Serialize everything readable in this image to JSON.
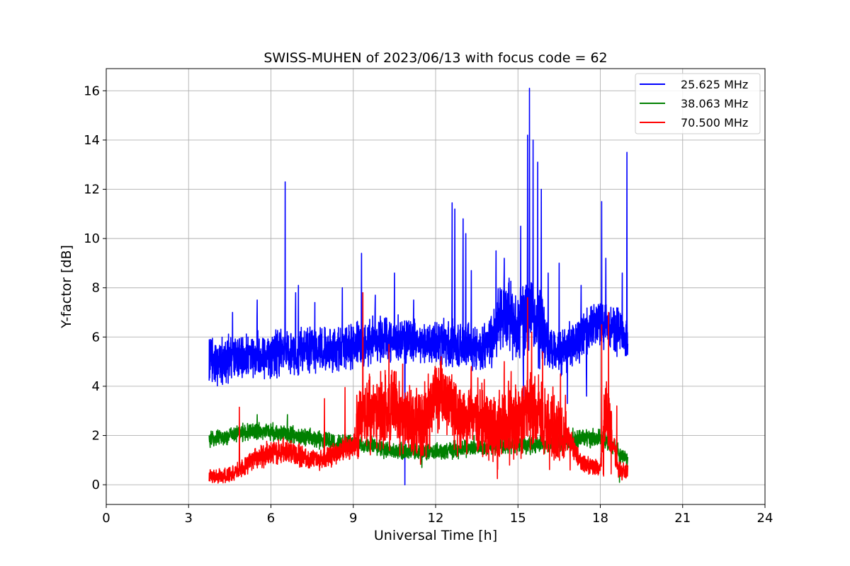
{
  "chart_data": {
    "type": "line",
    "title": "SWISS-MUHEN of 2023/06/13 with focus code = 62",
    "xlabel": "Universal Time [h]",
    "ylabel": "Y-factor [dB]",
    "xlim": [
      0,
      24
    ],
    "ylim": [
      -0.8,
      16.9
    ],
    "xticks": [
      0,
      3,
      6,
      9,
      12,
      15,
      18,
      21,
      24
    ],
    "yticks": [
      0,
      2,
      4,
      6,
      8,
      10,
      12,
      14,
      16
    ],
    "xtick_labels": [
      "0",
      "3",
      "6",
      "9",
      "12",
      "15",
      "18",
      "21",
      "24"
    ],
    "ytick_labels": [
      "0",
      "2",
      "4",
      "6",
      "8",
      "10",
      "12",
      "14",
      "16"
    ],
    "grid": true,
    "legend_position": "top-right",
    "series": [
      {
        "name": "25.625 MHz",
        "color": "#0000ff",
        "baseline": {
          "x": [
            3.75,
            4.5,
            5.5,
            6.5,
            7.5,
            8.5,
            9.25,
            10.0,
            11.0,
            12.0,
            13.0,
            13.8,
            14.5,
            15.0,
            15.5,
            16.0,
            16.5,
            17.0,
            17.5,
            18.0,
            18.5,
            19.0
          ],
          "y": [
            5.0,
            5.1,
            5.3,
            5.4,
            5.4,
            5.5,
            5.7,
            5.9,
            5.8,
            5.8,
            5.6,
            5.6,
            7.0,
            6.5,
            7.0,
            5.8,
            5.3,
            5.7,
            6.2,
            6.5,
            6.3,
            6.0
          ]
        },
        "spikes": [
          [
            3.8,
            5.9
          ],
          [
            4.6,
            7.0
          ],
          [
            5.5,
            7.5
          ],
          [
            6.52,
            12.3
          ],
          [
            6.9,
            7.8
          ],
          [
            7.0,
            8.1
          ],
          [
            7.6,
            7.4
          ],
          [
            8.6,
            8.0
          ],
          [
            9.3,
            9.4
          ],
          [
            9.8,
            7.7
          ],
          [
            10.5,
            8.6
          ],
          [
            11.2,
            7.5
          ],
          [
            12.6,
            11.45
          ],
          [
            12.7,
            11.2
          ],
          [
            13.0,
            10.8
          ],
          [
            13.1,
            10.2
          ],
          [
            13.3,
            8.7
          ],
          [
            14.2,
            9.5
          ],
          [
            14.5,
            9.2
          ],
          [
            15.1,
            10.5
          ],
          [
            15.35,
            14.2
          ],
          [
            15.42,
            16.1
          ],
          [
            15.55,
            14.0
          ],
          [
            15.72,
            13.1
          ],
          [
            15.85,
            12.0
          ],
          [
            16.1,
            8.6
          ],
          [
            16.5,
            9.0
          ],
          [
            17.3,
            8.1
          ],
          [
            18.05,
            11.5
          ],
          [
            18.2,
            9.2
          ],
          [
            18.8,
            8.6
          ],
          [
            18.97,
            13.5
          ]
        ],
        "dips": [
          [
            10.88,
            0.0
          ],
          [
            17.5,
            3.6
          ],
          [
            15.2,
            3.5
          ],
          [
            16.8,
            3.3
          ]
        ]
      },
      {
        "name": "38.063 MHz",
        "color": "#008000",
        "baseline": {
          "x": [
            3.75,
            4.5,
            5.5,
            6.5,
            7.5,
            8.5,
            9.5,
            10.5,
            11.5,
            12.5,
            13.5,
            14.5,
            15.5,
            16.5,
            17.0,
            17.5,
            18.0,
            18.5,
            19.0
          ],
          "y": [
            1.8,
            2.0,
            2.2,
            2.1,
            1.9,
            1.7,
            1.6,
            1.4,
            1.3,
            1.4,
            1.5,
            1.6,
            1.6,
            1.7,
            1.8,
            1.9,
            1.9,
            1.5,
            1.0
          ]
        },
        "spikes": [
          [
            5.5,
            2.85
          ],
          [
            6.6,
            2.85
          ],
          [
            9.2,
            2.7
          ],
          [
            13.4,
            2.0
          ],
          [
            17.0,
            2.3
          ]
        ],
        "dips": [
          [
            11.5,
            0.7
          ],
          [
            18.7,
            0.1
          ]
        ]
      },
      {
        "name": "70.500 MHz",
        "color": "#ff0000",
        "baseline": {
          "x": [
            3.75,
            4.5,
            5.0,
            5.5,
            6.0,
            6.5,
            7.0,
            7.5,
            8.0,
            8.5,
            9.0,
            9.15,
            9.3,
            10.0,
            10.5,
            11.0,
            11.5,
            12.0,
            12.5,
            13.0,
            13.5,
            14.0,
            14.5,
            15.0,
            15.5,
            16.0,
            16.5,
            17.0,
            17.3,
            17.5,
            18.0,
            18.2,
            18.5,
            18.65,
            19.0
          ],
          "y": [
            0.3,
            0.4,
            0.7,
            1.1,
            1.3,
            1.4,
            1.2,
            1.0,
            1.1,
            1.3,
            1.6,
            2.0,
            3.0,
            2.9,
            3.2,
            2.6,
            2.4,
            3.6,
            3.3,
            2.8,
            2.9,
            2.5,
            2.4,
            2.6,
            3.2,
            2.5,
            2.3,
            1.5,
            0.9,
            0.8,
            0.7,
            3.0,
            1.5,
            0.6,
            0.5
          ]
        },
        "spikes": [
          [
            4.85,
            3.15
          ],
          [
            7.95,
            3.5
          ],
          [
            8.7,
            3.95
          ],
          [
            9.35,
            7.8
          ],
          [
            10.3,
            5.7
          ],
          [
            10.8,
            4.9
          ],
          [
            12.2,
            5.2
          ],
          [
            13.3,
            4.8
          ],
          [
            14.5,
            5.0
          ],
          [
            14.75,
            4.6
          ],
          [
            15.35,
            7.6
          ],
          [
            15.5,
            6.2
          ],
          [
            15.9,
            5.4
          ],
          [
            16.55,
            4.5
          ],
          [
            18.05,
            6.5
          ],
          [
            18.3,
            7.0
          ],
          [
            18.6,
            3.2
          ]
        ],
        "dips": [
          [
            14.25,
            0.25
          ],
          [
            16.9,
            0.6
          ]
        ]
      }
    ]
  }
}
